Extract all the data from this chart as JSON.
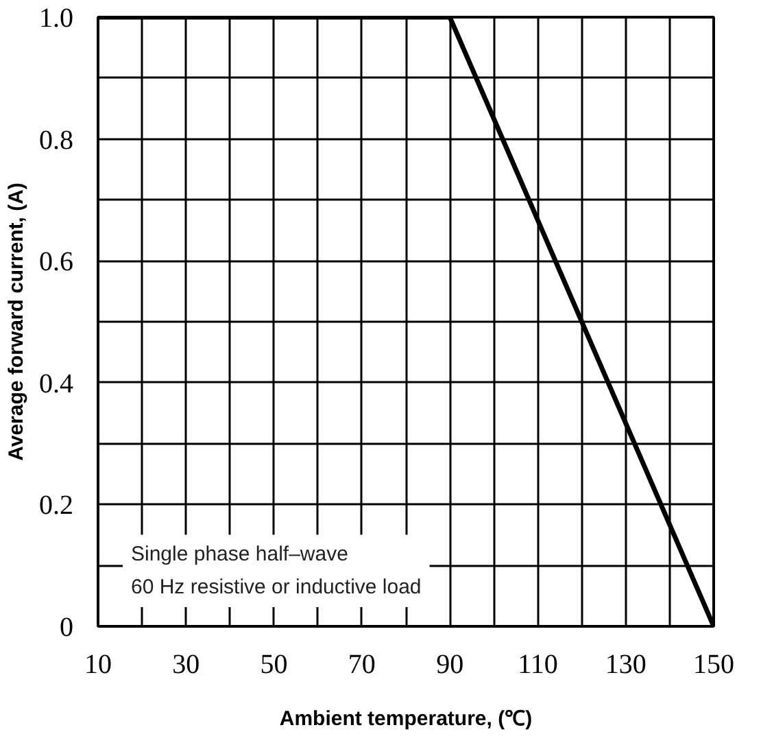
{
  "chart_data": {
    "type": "line",
    "xlabel": "Ambient temperature, (℃)",
    "ylabel": "Average forward current, (A)",
    "x": [
      10,
      90,
      150
    ],
    "series": [
      {
        "color": "#000000",
        "values": [
          1.0,
          1.0,
          0
        ]
      }
    ],
    "xlim": [
      10,
      150
    ],
    "ylim": [
      0,
      1.0
    ],
    "xticks": [
      10,
      {
        "value": 20,
        "label": null
      },
      30,
      {
        "value": 40,
        "label": null
      },
      50,
      {
        "value": 60,
        "label": null
      },
      70,
      {
        "value": 80,
        "label": null
      },
      90,
      {
        "value": 100,
        "label": null
      },
      110,
      {
        "value": 120,
        "label": null
      },
      130,
      {
        "value": 140,
        "label": null
      },
      150
    ],
    "yticks": [
      {
        "value": 0,
        "label": "0"
      },
      {
        "value": 0.1,
        "label": null
      },
      0.2,
      {
        "value": 0.3,
        "label": null
      },
      0.4,
      {
        "value": 0.5,
        "label": null
      },
      0.6,
      {
        "value": 0.7,
        "label": null
      },
      0.8,
      {
        "value": 0.9,
        "label": null
      },
      {
        "value": 1.0,
        "label": "1.0"
      }
    ],
    "grid": true,
    "line_style": "solid",
    "annotations": [
      "Single phase half–wave\n60 Hz resistive or inductive load"
    ]
  }
}
